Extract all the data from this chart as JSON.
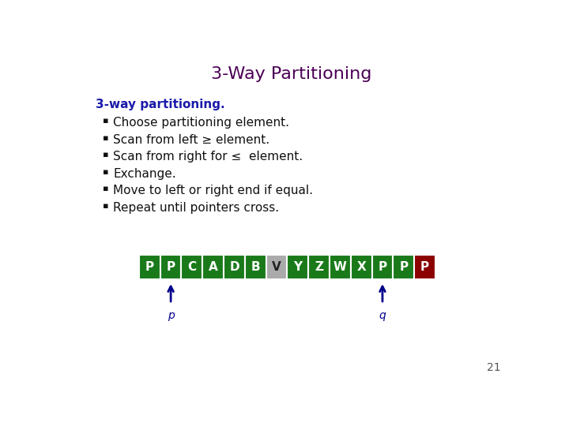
{
  "title": "3-Way Partitioning",
  "title_color": "#4B0055",
  "title_fontsize": 16,
  "subtitle": "3-way partitioning.",
  "subtitle_color": "#1a1aaa",
  "subtitle_fontsize": 11,
  "bullets": [
    "Choose partitioning element.",
    "Scan from left ≥ element.",
    "Scan from right for ≤  element.",
    "Exchange.",
    "Move to left or right end if equal.",
    "Repeat until pointers cross."
  ],
  "bullet_fontsize": 11,
  "bullet_color": "#111111",
  "elements": [
    "P",
    "P",
    "C",
    "A",
    "D",
    "B",
    "V",
    "Y",
    "Z",
    "W",
    "X",
    "P",
    "P",
    "P"
  ],
  "box_colors": [
    "#1a7a1a",
    "#1a7a1a",
    "#1a7a1a",
    "#1a7a1a",
    "#1a7a1a",
    "#1a7a1a",
    "#AAAAAA",
    "#1a7a1a",
    "#1a7a1a",
    "#1a7a1a",
    "#1a7a1a",
    "#1a7a1a",
    "#1a7a1a",
    "#8B0000"
  ],
  "text_colors": [
    "#FFFFFF",
    "#FFFFFF",
    "#FFFFFF",
    "#FFFFFF",
    "#FFFFFF",
    "#FFFFFF",
    "#222222",
    "#FFFFFF",
    "#FFFFFF",
    "#FFFFFF",
    "#FFFFFF",
    "#FFFFFF",
    "#FFFFFF",
    "#FFFFFF"
  ],
  "arrow_p_index": 1,
  "arrow_q_index": 11,
  "arrow_color": "#00008B",
  "page_number": "21",
  "background_color": "#FFFFFF"
}
